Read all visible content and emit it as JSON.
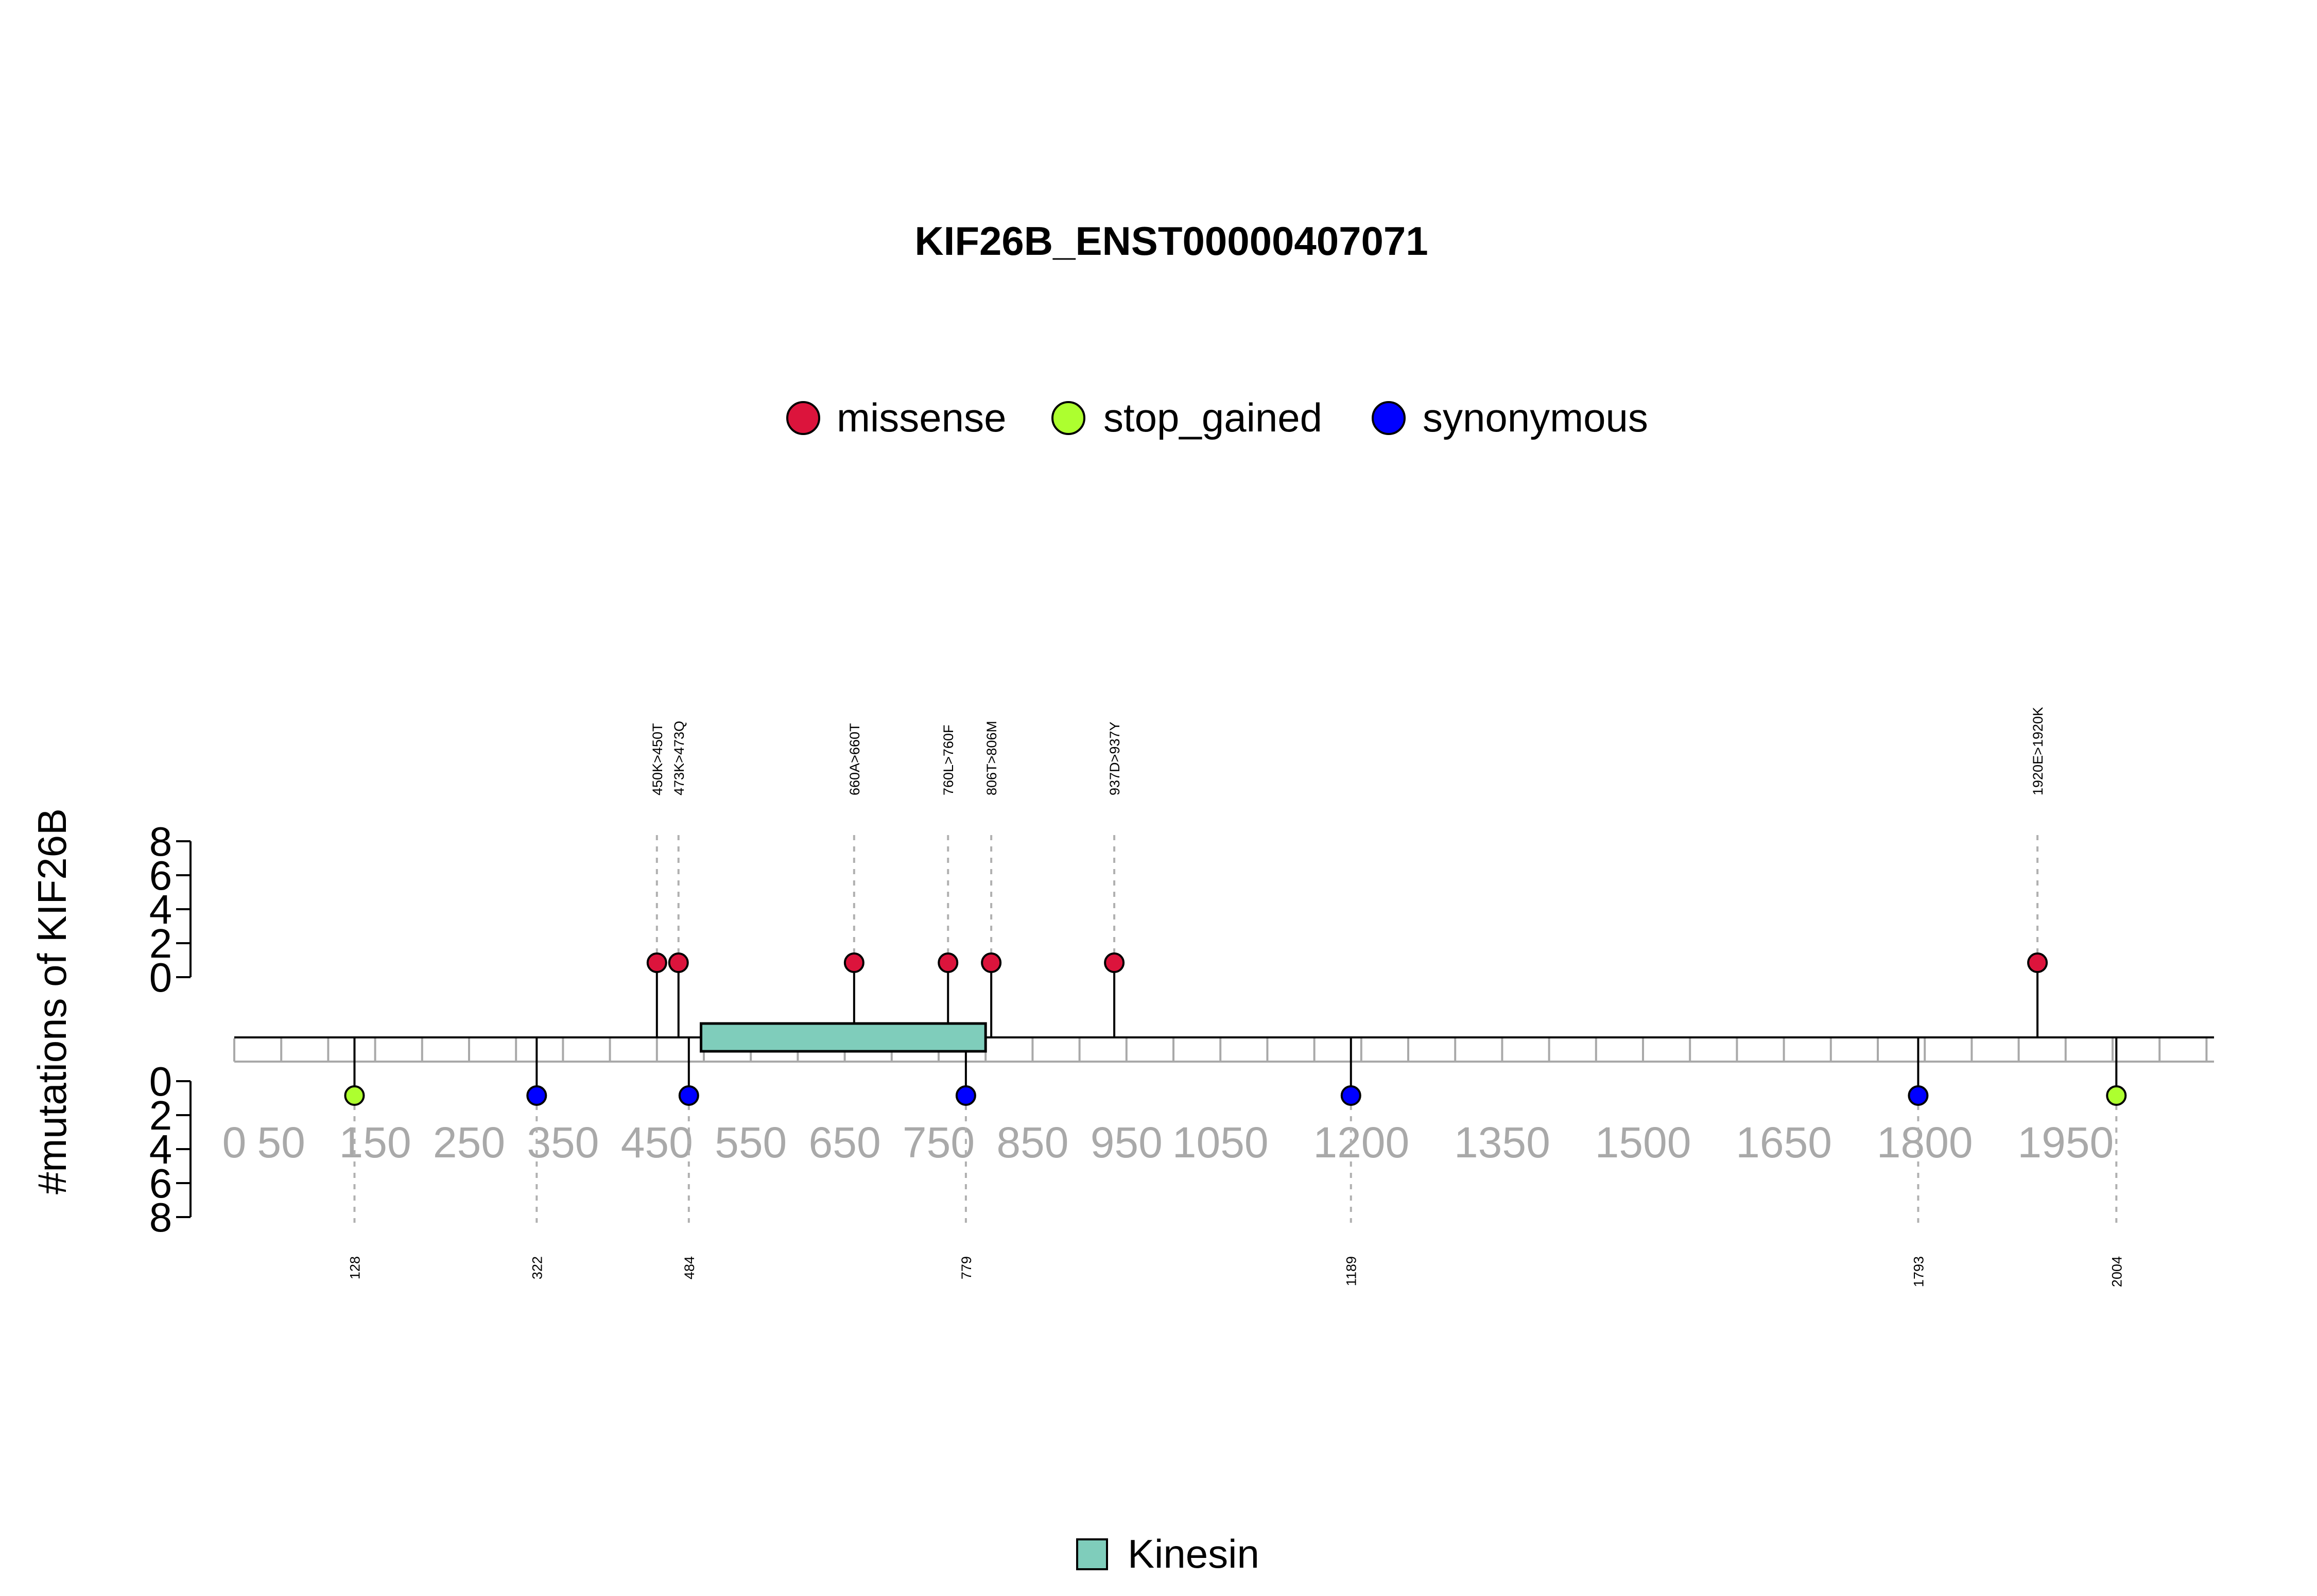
{
  "chart_data": {
    "type": "lollipop",
    "title": "KIF26B_ENST00000407071",
    "ylabel": "#mutations of KIF26B",
    "protein_length": 2108,
    "x_ticks": [
      0,
      50,
      150,
      250,
      350,
      450,
      550,
      650,
      750,
      850,
      950,
      1050,
      1200,
      1350,
      1500,
      1650,
      1800,
      1950
    ],
    "x_tick_labels": [
      "0",
      "50",
      "150",
      "250",
      "350",
      "450",
      "550",
      "650",
      "750",
      "850",
      "950",
      "1050",
      "1200",
      "1350",
      "1500",
      "1650",
      "1800",
      "1950"
    ],
    "y_ticks": [
      0,
      2,
      4,
      6,
      8
    ],
    "y_tick_labels": [
      "0",
      "2",
      "4",
      "6",
      "8"
    ],
    "ylim": [
      0,
      8
    ],
    "legend": [
      {
        "name": "missense",
        "color": "#DC143C"
      },
      {
        "name": "stop_gained",
        "color": "#ADFF2F"
      },
      {
        "name": "synonymous",
        "color": "#0000FF"
      }
    ],
    "domains": [
      {
        "name": "Kinesin",
        "start": 497,
        "end": 800,
        "color": "#7FCDBB"
      }
    ],
    "domain_legend": [
      {
        "name": "Kinesin",
        "color": "#7FCDBB"
      }
    ],
    "mutations_top": [
      {
        "position": 450,
        "label": "450K>450T",
        "count": 1,
        "type": "missense"
      },
      {
        "position": 473,
        "label": "473K>473Q",
        "count": 1,
        "type": "missense"
      },
      {
        "position": 660,
        "label": "660A>660T",
        "count": 1,
        "type": "missense"
      },
      {
        "position": 760,
        "label": "760L>760F",
        "count": 1,
        "type": "missense"
      },
      {
        "position": 806,
        "label": "806T>806M",
        "count": 1,
        "type": "missense"
      },
      {
        "position": 937,
        "label": "937D>937Y",
        "count": 1,
        "type": "missense"
      },
      {
        "position": 1920,
        "label": "1920E>1920K",
        "count": 1,
        "type": "missense"
      }
    ],
    "mutations_bottom": [
      {
        "position": 128,
        "label": "128",
        "count": 1,
        "type": "stop_gained"
      },
      {
        "position": 322,
        "label": "322",
        "count": 1,
        "type": "synonymous"
      },
      {
        "position": 484,
        "label": "484",
        "count": 1,
        "type": "synonymous"
      },
      {
        "position": 779,
        "label": "779",
        "count": 1,
        "type": "synonymous"
      },
      {
        "position": 1189,
        "label": "1189",
        "count": 1,
        "type": "synonymous"
      },
      {
        "position": 1793,
        "label": "1793",
        "count": 1,
        "type": "synonymous"
      },
      {
        "position": 2004,
        "label": "2004",
        "count": 1,
        "type": "stop_gained"
      }
    ]
  }
}
